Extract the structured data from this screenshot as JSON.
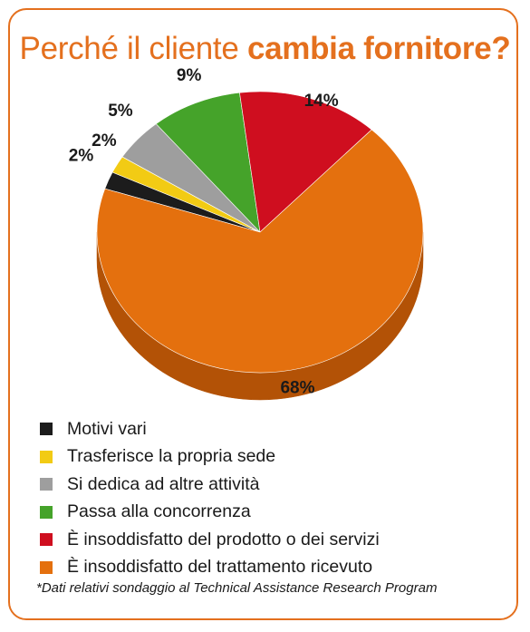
{
  "title": {
    "regular": "Perché il cliente",
    "bold": "cambia fornitore?"
  },
  "chart_data": {
    "type": "pie",
    "title": "Perché il cliente cambia fornitore?",
    "slices": [
      {
        "label": "Motivi vari",
        "value": 2,
        "display": "2%",
        "color": "#1c1c1c",
        "side": "#0c0c0c"
      },
      {
        "label": "Trasferisce la propria sede",
        "value": 2,
        "display": "2%",
        "color": "#f2cb14",
        "side": "#b99908"
      },
      {
        "label": "Si dedica ad altre attività",
        "value": 5,
        "display": "5%",
        "color": "#9e9e9e",
        "side": "#6f6f6f"
      },
      {
        "label": "Passa alla concorrenza",
        "value": 9,
        "display": "9%",
        "color": "#45a32a",
        "side": "#2e7519"
      },
      {
        "label": "È insoddisfatto del prodotto o dei servizi",
        "value": 14,
        "display": "14%",
        "color": "#cf0e1f",
        "side": "#8e0712"
      },
      {
        "label": "È insoddisfatto del trattamento ricevuto",
        "value": 68,
        "display": "68%",
        "color": "#e4700e",
        "side": "#b35206"
      }
    ],
    "legend_position": "bottom"
  },
  "footnote": "*Dati relativi sondaggio al Technical Assistance Research Program"
}
